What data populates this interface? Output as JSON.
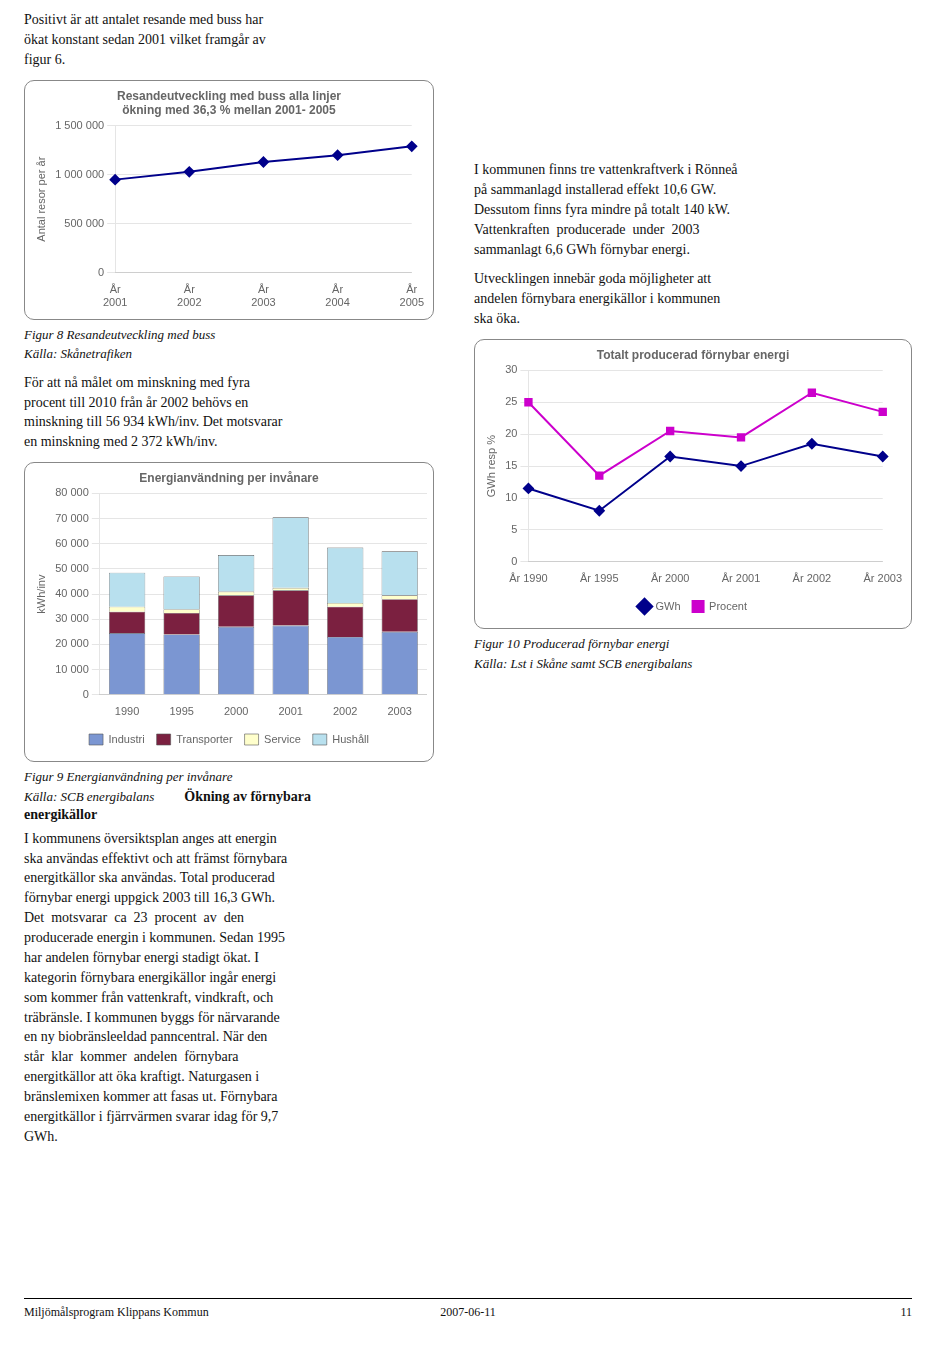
{
  "chart_data": [
    {
      "type": "line",
      "title": "Resandeutveckling med buss alla linjer",
      "subtitle": "ökning med 36,3 % mellan 2001- 2005",
      "ylabel": "Antal resor per år",
      "categories": [
        "År\n2001",
        "År\n2002",
        "År\n2003",
        "År\n2004",
        "År\n2005"
      ],
      "values": [
        950000,
        1030000,
        1130000,
        1200000,
        1290000
      ],
      "color": "#00008B",
      "marker": "diamond",
      "ylim": [
        0,
        1500000
      ],
      "yticks": [
        0,
        {
          "value": 500000,
          "label": "500 000"
        },
        {
          "value": 1000000,
          "label": "1 000 000"
        },
        {
          "value": 1500000,
          "label": "1 500 000"
        }
      ],
      "grid": true,
      "annotations": [
        "Figur 8 Resandeutveckling med buss",
        "Källa: Skånetrafiken"
      ]
    },
    {
      "type": "bar",
      "stacked": true,
      "title": "Energianvändning per invånare",
      "ylabel": "kWh/inv",
      "categories": [
        "1990",
        "1995",
        "2000",
        "2001",
        "2002",
        "2003"
      ],
      "series": [
        {
          "name": "Industri",
          "color": "#7B96D2",
          "values": [
            24500,
            24000,
            27000,
            27500,
            23000,
            25000
          ]
        },
        {
          "name": "Transporter",
          "color": "#7B2040",
          "values": [
            8500,
            8500,
            12500,
            14000,
            12000,
            13000
          ]
        },
        {
          "name": "Service",
          "color": "#FFFFCC",
          "values": [
            2000,
            1500,
            1500,
            1000,
            1500,
            1500
          ]
        },
        {
          "name": "Hushåll",
          "color": "#B8E0EE",
          "values": [
            13500,
            13000,
            14500,
            28000,
            22000,
            17500
          ]
        }
      ],
      "ylim": [
        0,
        80000
      ],
      "yticks": [
        0,
        {
          "value": 10000,
          "label": "10 000"
        },
        {
          "value": 20000,
          "label": "20 000"
        },
        {
          "value": 30000,
          "label": "30 000"
        },
        {
          "value": 40000,
          "label": "40 000"
        },
        {
          "value": 50000,
          "label": "50 000"
        },
        {
          "value": 60000,
          "label": "60 000"
        },
        {
          "value": 70000,
          "label": "70 000"
        },
        {
          "value": 80000,
          "label": "80 000"
        }
      ],
      "grid": true,
      "legend": "bottom",
      "annotations": [
        "Figur 9 Energianvändning per invånare",
        "Källa: SCB energibalans"
      ]
    },
    {
      "type": "line",
      "title": "Totalt producerad förnybar energi",
      "ylabel": "GWh resp %",
      "categories": [
        "År 1990",
        "År 1995",
        "År 2000",
        "År 2001",
        "År 2002",
        "År 2003"
      ],
      "series": [
        {
          "name": "GWh",
          "color": "#00008B",
          "marker": "diamond",
          "values": [
            11.5,
            8,
            16.5,
            15,
            18.5,
            16.5
          ]
        },
        {
          "name": "Procent",
          "color": "#CC00CC",
          "marker": "square",
          "values": [
            25,
            13.5,
            20.5,
            19.5,
            26.5,
            23.5
          ]
        }
      ],
      "ylim": [
        0,
        30
      ],
      "yticks": [
        0,
        5,
        10,
        15,
        20,
        25,
        30
      ],
      "grid": true,
      "legend": "bottom",
      "annotations": [
        "Figur 10 Producerad förnybar energi",
        "Källa: Lst i Skåne samt SCB energibalans"
      ]
    }
  ],
  "annotations": [
    "Positivt är att antalet resande med buss har\nökat konstant sedan 2001 vilket framgår av\nfigur 6.",
    "För att nå målet om minskning med fyra\nprocent till 2010 från år 2002 behövs en\nminskning till 56 934 kWh/inv. Det motsvarar\nen minskning med 2 372 kWh/inv.",
    "Ökning av förnybara",
    "energikällor",
    "I kommunens översiktsplan anges att energin\nska användas effektivt och att främst förnybara\nenergitkällor ska användas. Total producerad\nförnybar energi uppgick 2003 till 16,3 GWh.\nDet  motsvarar  ca  23  procent  av  den\nproducerade energin i kommunen. Sedan 1995\nhar andelen förnybar energi stadigt ökat. I\nkategorin förnybara energikällor ingår energi\nsom kommer från vattenkraft, vindkraft, och\nträbränsle. I kommunen byggs för närvarande\nen ny biobränsleeldad panncentral. När den\nstår  klar  kommer  andelen  förnybara\nenergitkällor att öka kraftigt. Naturgasen i\nbränslemixen kommer att fasas ut. Förnybara\nenergitkällor i fjärrvärmen svarar idag för 9,7\nGWh.",
    "I kommunen finns tre vattenkraftverk i Rönneå\npå sammanlagd installerad effekt 10,6 GW.\nDessutom finns fyra mindre på totalt 140 kW.\nVattenkraften  producerade  under  2003\nsammanlagt 6,6 GWh förnybar energi.",
    "Utvecklingen innebär goda möjligheter att\nandelen förnybara energikällor i kommunen\nska öka.",
    "Miljömålsprogram Klippans Kommun",
    "2007-06-11",
    "11"
  ]
}
